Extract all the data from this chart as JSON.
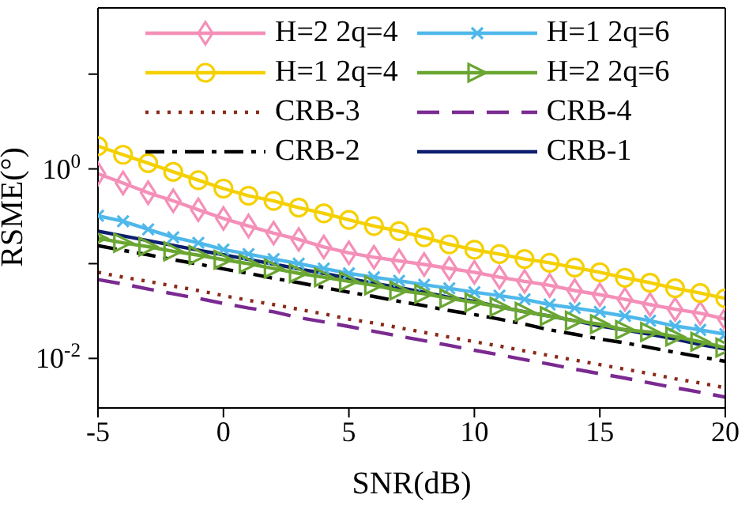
{
  "chart_data": {
    "type": "line",
    "xlabel": "SNR(dB)",
    "ylabel": "RSME(°)",
    "log": "y",
    "grid": false,
    "legend": "top",
    "xlim": [
      -5,
      20
    ],
    "xticks": [
      -5,
      0,
      5,
      10,
      15,
      20
    ],
    "ylim": [
      0.003,
      50
    ],
    "yticks": [
      {
        "value": 0.01,
        "label": "10$^{-2}$"
      },
      {
        "value": 0.1,
        "label": null
      },
      {
        "value": 1,
        "label": "10$^{0}$"
      },
      {
        "value": 10,
        "label": null
      }
    ],
    "x": [
      -5,
      -4,
      -3,
      -2,
      -1,
      0,
      1,
      2,
      3,
      4,
      5,
      6,
      7,
      8,
      9,
      10,
      11,
      12,
      13,
      14,
      15,
      16,
      17,
      18,
      19,
      20
    ],
    "series": [
      {
        "name": "H=2 2q=4",
        "color": "#f48fb8",
        "marker": "diamond",
        "line_style": "solid",
        "values": [
          0.89,
          0.71,
          0.56,
          0.46,
          0.37,
          0.3,
          0.25,
          0.21,
          0.18,
          0.15,
          0.13,
          0.117,
          0.107,
          0.098,
          0.089,
          0.081,
          0.072,
          0.065,
          0.059,
          0.052,
          0.047,
          0.042,
          0.037,
          0.033,
          0.03,
          0.026
        ]
      },
      {
        "name": "H=1 2q=6",
        "color": "#4fb8ea",
        "marker": "cross",
        "line_style": "solid",
        "values": [
          0.32,
          0.28,
          0.23,
          0.19,
          0.166,
          0.141,
          0.126,
          0.112,
          0.1,
          0.089,
          0.079,
          0.072,
          0.066,
          0.06,
          0.055,
          0.05,
          0.046,
          0.042,
          0.037,
          0.034,
          0.031,
          0.028,
          0.025,
          0.022,
          0.02,
          0.018
        ]
      },
      {
        "name": "H=1 2q=4",
        "color": "#f5d000",
        "marker": "circle",
        "line_style": "solid",
        "values": [
          1.74,
          1.41,
          1.15,
          0.93,
          0.76,
          0.62,
          0.52,
          0.46,
          0.39,
          0.34,
          0.29,
          0.25,
          0.22,
          0.19,
          0.16,
          0.14,
          0.126,
          0.112,
          0.102,
          0.091,
          0.081,
          0.071,
          0.063,
          0.055,
          0.049,
          0.043
        ]
      },
      {
        "name": "H=2 2q=6",
        "color": "#6aa632",
        "marker": "triangle",
        "line_style": "solid",
        "values": [
          0.186,
          0.166,
          0.151,
          0.135,
          0.123,
          0.11,
          0.1,
          0.089,
          0.079,
          0.072,
          0.065,
          0.059,
          0.052,
          0.048,
          0.043,
          0.039,
          0.035,
          0.031,
          0.028,
          0.025,
          0.023,
          0.02,
          0.019,
          0.017,
          0.015,
          0.013
        ]
      },
      {
        "name": "CRB-3",
        "color": "#8b2a1a",
        "marker": "none",
        "line_style": "dotted",
        "values": [
          0.081,
          0.072,
          0.065,
          0.058,
          0.052,
          0.046,
          0.041,
          0.037,
          0.033,
          0.0295,
          0.026,
          0.0236,
          0.0211,
          0.0188,
          0.0168,
          0.015,
          0.0135,
          0.012,
          0.0107,
          0.0096,
          0.0086,
          0.0077,
          0.0069,
          0.0061,
          0.0055,
          0.0049
        ]
      },
      {
        "name": "CRB-4",
        "color": "#7a2a90",
        "marker": "none",
        "line_style": "dashed",
        "values": [
          0.068,
          0.061,
          0.054,
          0.048,
          0.043,
          0.038,
          0.034,
          0.031,
          0.027,
          0.0243,
          0.0217,
          0.0193,
          0.0172,
          0.0154,
          0.0137,
          0.0122,
          0.0109,
          0.0097,
          0.0087,
          0.0077,
          0.0069,
          0.0062,
          0.0055,
          0.0049,
          0.0044,
          0.0039
        ]
      },
      {
        "name": "CRB-2",
        "color": "#000000",
        "marker": "none",
        "line_style": "dashdot",
        "values": [
          0.155,
          0.138,
          0.124,
          0.11,
          0.099,
          0.088,
          0.079,
          0.07,
          0.063,
          0.056,
          0.05,
          0.045,
          0.04,
          0.036,
          0.032,
          0.029,
          0.026,
          0.023,
          0.02,
          0.018,
          0.016,
          0.0146,
          0.013,
          0.0116,
          0.0104,
          0.0093
        ]
      },
      {
        "name": "CRB-1",
        "color": "#0d1f6e",
        "marker": "none",
        "line_style": "solid",
        "values": [
          0.22,
          0.196,
          0.175,
          0.156,
          0.139,
          0.124,
          0.111,
          0.099,
          0.088,
          0.079,
          0.07,
          0.062,
          0.056,
          0.05,
          0.044,
          0.04,
          0.035,
          0.031,
          0.028,
          0.025,
          0.022,
          0.02,
          0.018,
          0.016,
          0.014,
          0.0126
        ]
      }
    ]
  }
}
